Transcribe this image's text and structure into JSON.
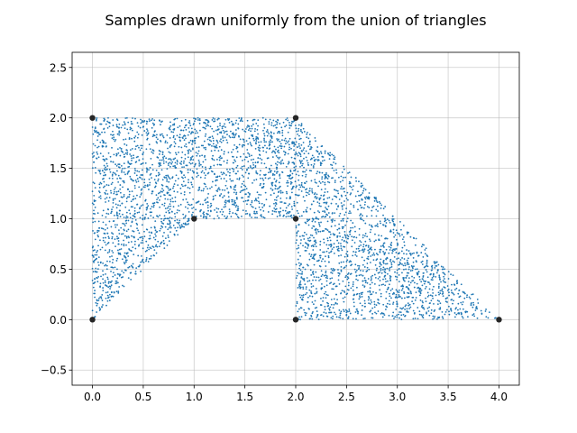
{
  "chart_data": {
    "type": "scatter",
    "title": "Samples drawn uniformly from the union of triangles",
    "xlabel": "",
    "ylabel": "",
    "xlim": [
      -0.2,
      4.2
    ],
    "ylim": [
      -0.65,
      2.65
    ],
    "xticks": [
      0.0,
      0.5,
      1.0,
      1.5,
      2.0,
      2.5,
      3.0,
      3.5,
      4.0
    ],
    "xtick_labels": [
      "0.0",
      "0.5",
      "1.0",
      "1.5",
      "2.0",
      "2.5",
      "3.0",
      "3.5",
      "4.0"
    ],
    "yticks": [
      -0.5,
      0.0,
      0.5,
      1.0,
      1.5,
      2.0,
      2.5
    ],
    "ytick_labels": [
      "−0.5",
      "0.0",
      "0.5",
      "1.0",
      "1.5",
      "2.0",
      "2.5"
    ],
    "grid": true,
    "sample_color": "#1f77b4",
    "vertex_color": "#262626",
    "sample_count": 4000,
    "triangles": [
      [
        [
          0,
          0
        ],
        [
          0,
          2
        ],
        [
          1,
          1
        ]
      ],
      [
        [
          0,
          2
        ],
        [
          2,
          2
        ],
        [
          1,
          1
        ]
      ],
      [
        [
          1,
          1
        ],
        [
          2,
          2
        ],
        [
          2,
          1
        ]
      ],
      [
        [
          2,
          0
        ],
        [
          2,
          2
        ],
        [
          4,
          0
        ]
      ]
    ],
    "vertices": [
      {
        "x": 0,
        "y": 0
      },
      {
        "x": 0,
        "y": 2
      },
      {
        "x": 1,
        "y": 1
      },
      {
        "x": 2,
        "y": 2
      },
      {
        "x": 2,
        "y": 1
      },
      {
        "x": 2,
        "y": 0
      },
      {
        "x": 4,
        "y": 0
      }
    ]
  }
}
